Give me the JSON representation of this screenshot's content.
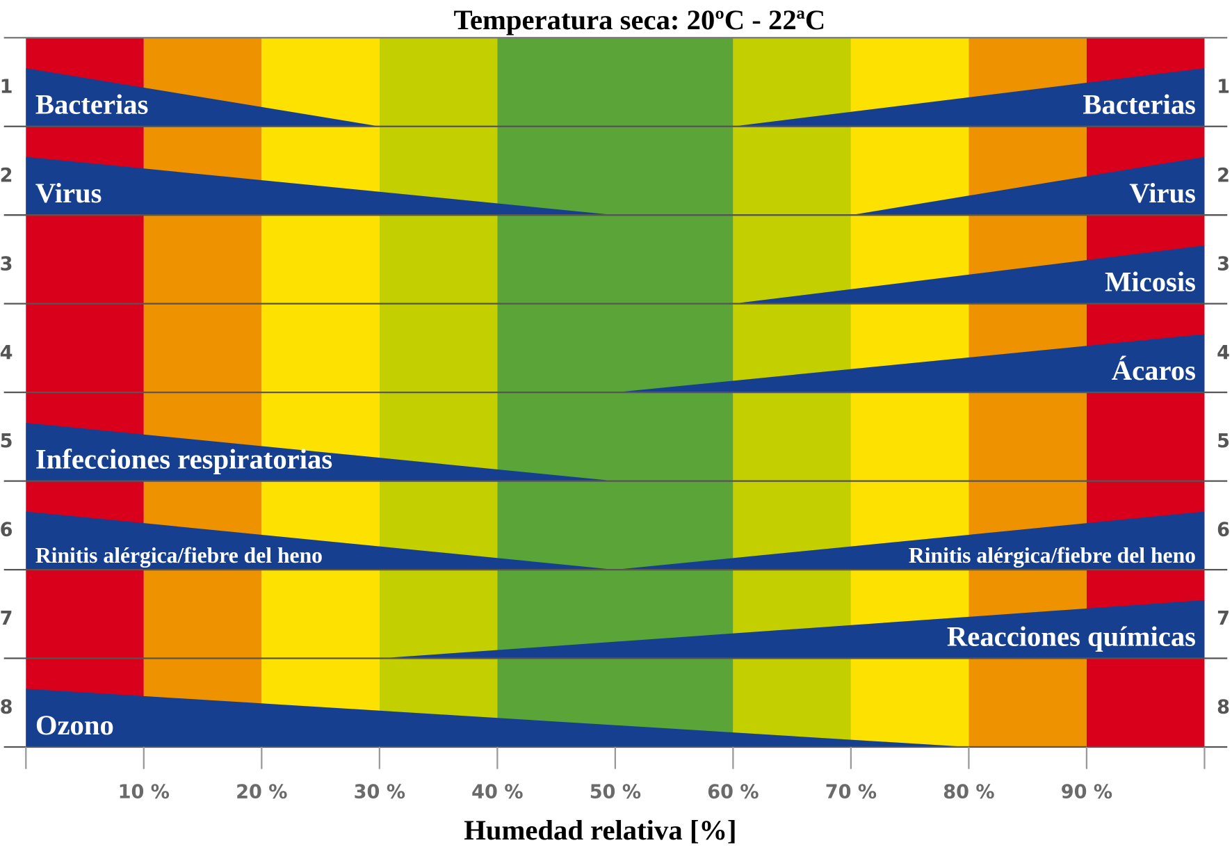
{
  "chart_data": {
    "type": "area",
    "title": "Temperatura seca: 20ºC - 22ªC",
    "xlabel": "Humedad relativa [%]",
    "ylabel": "",
    "xlim": [
      0,
      100
    ],
    "x_ticks": [
      "10 %",
      "20 %",
      "30 %",
      "40 %",
      "50 %",
      "60 %",
      "70 %",
      "80 %",
      "90 %"
    ],
    "bands": [
      {
        "from": 0,
        "to": 10,
        "color": "#d9001b"
      },
      {
        "from": 10,
        "to": 20,
        "color": "#ee9200"
      },
      {
        "from": 20,
        "to": 30,
        "color": "#fde100"
      },
      {
        "from": 30,
        "to": 40,
        "color": "#c4cf00"
      },
      {
        "from": 40,
        "to": 60,
        "color": "#5ba538"
      },
      {
        "from": 60,
        "to": 70,
        "color": "#c4cf00"
      },
      {
        "from": 70,
        "to": 80,
        "color": "#fde100"
      },
      {
        "from": 80,
        "to": 90,
        "color": "#ee9200"
      },
      {
        "from": 90,
        "to": 100,
        "color": "#d9001b"
      }
    ],
    "wedge_color": "#173f8f",
    "rows": [
      {
        "number": "1",
        "left_label": "Bacterias",
        "left_end": 30,
        "right_label": "Bacterias",
        "right_start": 60
      },
      {
        "number": "2",
        "left_label": "Virus",
        "left_end": 50,
        "right_label": "Virus",
        "right_start": 70
      },
      {
        "number": "3",
        "left_label": null,
        "left_end": null,
        "right_label": "Micosis",
        "right_start": 60
      },
      {
        "number": "4",
        "left_label": null,
        "left_end": null,
        "right_label": "Ácaros",
        "right_start": 50
      },
      {
        "number": "5",
        "left_label": "Infecciones respiratorias",
        "left_end": 50,
        "right_label": null,
        "right_start": null
      },
      {
        "number": "6",
        "left_label": "Rinitis alérgica/fiebre del heno",
        "left_end": 50,
        "right_label": "Rinitis alérgica/fiebre del heno",
        "right_start": 50
      },
      {
        "number": "7",
        "left_label": null,
        "left_end": null,
        "right_label": "Reacciones químicas",
        "right_start": 30
      },
      {
        "number": "8",
        "left_label": "Ozono",
        "left_end": 80,
        "right_label": null,
        "right_start": null
      }
    ]
  }
}
